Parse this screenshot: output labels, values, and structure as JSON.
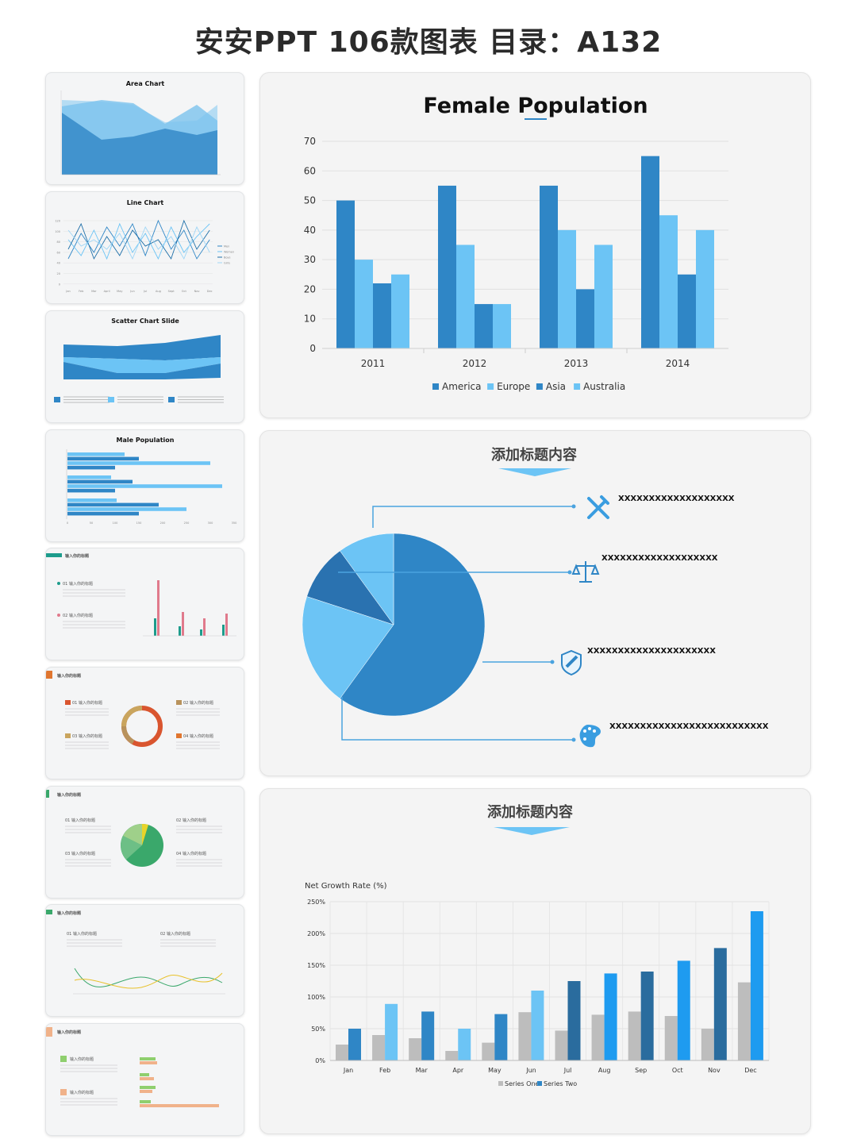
{
  "page": {
    "title": "安安PPT  106款图表  目录：A132"
  },
  "colors": {
    "dark_blue": "#2f86c6",
    "light_blue": "#6cc4f5",
    "bright_blue": "#1e9bf0",
    "navy": "#2a6c9e",
    "gray": "#bdbdbd"
  },
  "thumbnails": [
    {
      "title": "Area Chart"
    },
    {
      "title": "Line Chart",
      "legend": [
        "Men",
        "Women",
        "Boys",
        "Girls"
      ],
      "months": [
        "Jan",
        "Feb",
        "Mar",
        "April",
        "May",
        "Jun",
        "Jul",
        "Aug",
        "Sept",
        "Oct",
        "Nov",
        "Dec"
      ],
      "yticks": [
        "120",
        "100",
        "80",
        "60",
        "40",
        "20",
        "0"
      ]
    },
    {
      "title": "Scatter Chart Slide"
    },
    {
      "title": "Male Population"
    },
    {
      "title": "输入你的标题",
      "items": [
        "01 输入你的标题",
        "02 输入你的标题"
      ]
    },
    {
      "title": "输入你的标题",
      "items": [
        "01 输入你的标题",
        "02 输入你的标题",
        "03 输入你的标题",
        "04 输入你的标题"
      ]
    },
    {
      "title": "输入你的标题",
      "items": [
        "01 输入你的标题",
        "02 输入你的标题",
        "03 输入你的标题",
        "04 输入你的标题"
      ]
    },
    {
      "title": "输入你的标题",
      "items": [
        "01 输入你的标题",
        "02 输入你的标题"
      ]
    },
    {
      "title": "输入你的标题",
      "items": [
        "输入你的标题",
        "输入你的标题"
      ]
    }
  ],
  "chart_data": [
    {
      "type": "bar",
      "title": "Female Population",
      "categories": [
        "2011",
        "2012",
        "2013",
        "2014"
      ],
      "series": [
        {
          "name": "America",
          "color": "#2f86c6",
          "values": [
            50,
            55,
            55,
            65
          ]
        },
        {
          "name": "Europe",
          "color": "#6cc4f5",
          "values": [
            30,
            35,
            40,
            45
          ]
        },
        {
          "name": "Asia",
          "color": "#2f86c6",
          "values": [
            22,
            15,
            20,
            25
          ]
        },
        {
          "name": "Australia",
          "color": "#6cc4f5",
          "values": [
            25,
            15,
            35,
            40
          ]
        }
      ],
      "ylim": [
        0,
        70
      ],
      "yticks": [
        0,
        10,
        20,
        30,
        40,
        50,
        60,
        70
      ],
      "legend_position": "bottom",
      "grid": true
    },
    {
      "type": "pie",
      "title": "添加标题内容",
      "slices": [
        {
          "label": "XXXXXXXXXXXXXXXXXXX",
          "icon": "tools-icon",
          "value": 60,
          "color": "#2f86c6"
        },
        {
          "label": "XXXXXXXXXXXXXXXXXXX",
          "icon": "scale-icon",
          "value": 20,
          "color": "#6cc4f5"
        },
        {
          "label": "XXXXXXXXXXXXXXXXXXXXX",
          "icon": "shield-icon",
          "value": 10,
          "color": "#2a72b0"
        },
        {
          "label": "XXXXXXXXXXXXXXXXXXXXXXXXXX",
          "icon": "palette-icon",
          "value": 10,
          "color": "#6cc4f5"
        }
      ]
    },
    {
      "type": "bar",
      "title": "添加标题内容",
      "ylabel": "Net Growth Rate (%)",
      "categories": [
        "Jan",
        "Feb",
        "Mar",
        "Apr",
        "May",
        "Jun",
        "Jul",
        "Aug",
        "Sep",
        "Oct",
        "Nov",
        "Dec"
      ],
      "series": [
        {
          "name": "Series One",
          "color": "#bdbdbd",
          "values": [
            25,
            40,
            35,
            15,
            28,
            76,
            47,
            72,
            77,
            70,
            50,
            123
          ]
        },
        {
          "name": "Series Two",
          "values": [
            50,
            89,
            77,
            50,
            73,
            110,
            125,
            137,
            140,
            157,
            177,
            235
          ],
          "colors": [
            "#2f86c6",
            "#6cc4f5",
            "#2f86c6",
            "#6cc4f5",
            "#2f86c6",
            "#6cc4f5",
            "#2a6c9e",
            "#1e9bf0",
            "#2a6c9e",
            "#1e9bf0",
            "#2a6c9e",
            "#1e9bf0"
          ]
        }
      ],
      "ylim": [
        0,
        250
      ],
      "yticks": [
        "0%",
        "50%",
        "100%",
        "150%",
        "200%",
        "250%"
      ],
      "legend_position": "bottom",
      "grid": true
    }
  ]
}
